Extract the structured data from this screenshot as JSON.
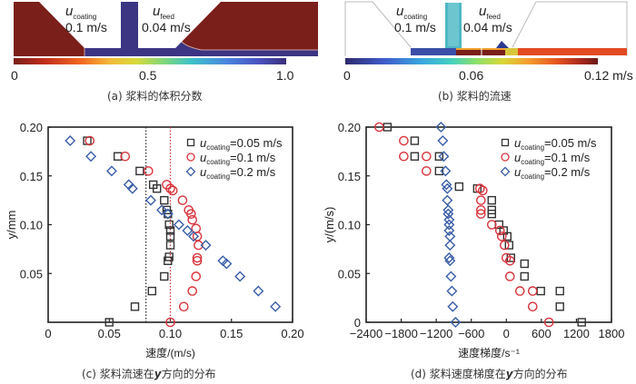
{
  "panels": {
    "a": {
      "caption": "(a) 浆料的体积分数",
      "u_coating_label": "u",
      "u_coating_sub": "coating",
      "u_coating_value": "0.1 m/s",
      "u_feed_label": "u",
      "u_feed_sub": "feed",
      "u_feed_value": "0.04 m/s",
      "colorbar": {
        "min_label": "0",
        "mid_label": "0.5",
        "max_label": "1.0",
        "colormap": "turbo-reversed"
      }
    },
    "b": {
      "caption": "(b) 浆料的流速",
      "u_coating_label": "u",
      "u_coating_sub": "coating",
      "u_coating_value": "0.1 m/s",
      "u_feed_label": "u",
      "u_feed_sub": "feed",
      "u_feed_value": "0.04 m/s",
      "colorbar": {
        "min_label": "0",
        "mid_label": "0.06",
        "max_label": "0.12 m/s",
        "colormap": "turbo"
      }
    },
    "c": {
      "caption_pre": "(c) 浆料流速在",
      "caption_var": "y",
      "caption_post": "方向的分布"
    },
    "d": {
      "caption_pre": "(d) 浆料速度梯度在",
      "caption_var": "y",
      "caption_post": "方向的分布"
    }
  },
  "colors": {
    "series_005": "#333333",
    "series_01": "#d9343c",
    "series_02": "#3a5ea8",
    "dark_red": "#7a1f1a",
    "navy": "#3b3583"
  },
  "chart_data": [
    {
      "type": "scatter",
      "id": "c",
      "title": "",
      "xlabel": "速度/(m/s)",
      "ylabel": "y/mm",
      "xlim": [
        0,
        0.2
      ],
      "ylim": [
        0,
        0.2
      ],
      "xticks": [
        "0",
        "0.05",
        "0.10",
        "0.15",
        "0.20"
      ],
      "xtick_values": [
        0,
        0.05,
        0.1,
        0.15,
        0.2
      ],
      "yticks": [
        "0.05",
        "0.10",
        "0.15",
        "0.20"
      ],
      "ytick_values": [
        0.05,
        0.1,
        0.15,
        0.2
      ],
      "grid": false,
      "legend": "top-right",
      "vlines": [
        {
          "x": 0.08,
          "color": "#333333",
          "style": "dotted"
        },
        {
          "x": 0.1,
          "color": "#d9343c",
          "style": "dotted"
        }
      ],
      "series": [
        {
          "name": "u_coating=0.05 m/s",
          "legend_sub": "coating",
          "legend_val": "=0.05 m/s",
          "marker": "square",
          "color": "#333333",
          "points": [
            [
              0.032,
              0.186
            ],
            [
              0.057,
              0.17
            ],
            [
              0.075,
              0.155
            ],
            [
              0.086,
              0.141
            ],
            [
              0.089,
              0.137
            ],
            [
              0.095,
              0.125
            ],
            [
              0.097,
              0.115
            ],
            [
              0.098,
              0.111
            ],
            [
              0.099,
              0.1
            ],
            [
              0.1,
              0.094
            ],
            [
              0.1,
              0.088
            ],
            [
              0.1,
              0.079
            ],
            [
              0.099,
              0.067
            ],
            [
              0.098,
              0.063
            ],
            [
              0.095,
              0.047
            ],
            [
              0.085,
              0.032
            ],
            [
              0.071,
              0.016
            ],
            [
              0.05,
              0.0
            ]
          ]
        },
        {
          "name": "u_coating=0.1 m/s",
          "legend_sub": "coating",
          "legend_val": "=0.1 m/s",
          "marker": "circle",
          "color": "#d9343c",
          "points": [
            [
              0.034,
              0.186
            ],
            [
              0.063,
              0.17
            ],
            [
              0.082,
              0.155
            ],
            [
              0.097,
              0.141
            ],
            [
              0.1,
              0.137
            ],
            [
              0.102,
              0.135
            ],
            [
              0.11,
              0.125
            ],
            [
              0.115,
              0.115
            ],
            [
              0.117,
              0.111
            ],
            [
              0.118,
              0.105
            ],
            [
              0.121,
              0.096
            ],
            [
              0.122,
              0.088
            ],
            [
              0.123,
              0.079
            ],
            [
              0.122,
              0.066
            ],
            [
              0.122,
              0.063
            ],
            [
              0.121,
              0.047
            ],
            [
              0.118,
              0.032
            ],
            [
              0.111,
              0.016
            ],
            [
              0.1,
              0.0
            ]
          ]
        },
        {
          "name": "u_coating=0.2 m/s",
          "legend_sub": "coating",
          "legend_val": "=0.2 m/s",
          "marker": "diamond",
          "color": "#3a5ea8",
          "points": [
            [
              0.018,
              0.186
            ],
            [
              0.035,
              0.17
            ],
            [
              0.052,
              0.155
            ],
            [
              0.066,
              0.141
            ],
            [
              0.069,
              0.137
            ],
            [
              0.084,
              0.125
            ],
            [
              0.093,
              0.115
            ],
            [
              0.098,
              0.111
            ],
            [
              0.107,
              0.1
            ],
            [
              0.114,
              0.094
            ],
            [
              0.119,
              0.088
            ],
            [
              0.129,
              0.079
            ],
            [
              0.143,
              0.063
            ],
            [
              0.146,
              0.06
            ],
            [
              0.157,
              0.047
            ],
            [
              0.172,
              0.032
            ],
            [
              0.186,
              0.016
            ]
          ]
        }
      ]
    },
    {
      "type": "scatter",
      "id": "d",
      "title": "",
      "xlabel": "速度梯度/s⁻¹",
      "ylabel": "y/(m/s)",
      "xlim": [
        -2400,
        1800
      ],
      "ylim": [
        0,
        0.2
      ],
      "xticks": [
        "−2400",
        "−1800",
        "−1200",
        "−600",
        "0",
        "600",
        "1200",
        "1800"
      ],
      "xtick_values": [
        -2400,
        -1800,
        -1200,
        -600,
        0,
        600,
        1200,
        1800
      ],
      "yticks": [
        "0",
        "0.05",
        "0.10",
        "0.15",
        "0.20"
      ],
      "ytick_values": [
        0,
        0.05,
        0.1,
        0.15,
        0.2
      ],
      "grid": false,
      "legend": "top-right",
      "series": [
        {
          "name": "u_coating=0.05 m/s",
          "legend_sub": "coating",
          "legend_val": "=0.05 m/s",
          "marker": "square",
          "color": "#333333",
          "points": [
            [
              -2036,
              0.2
            ],
            [
              -1569,
              0.186
            ],
            [
              -1569,
              0.17
            ],
            [
              -1150,
              0.17
            ],
            [
              -1150,
              0.155
            ],
            [
              -808,
              0.139
            ],
            [
              -497,
              0.137
            ],
            [
              -249,
              0.125
            ],
            [
              -249,
              0.115
            ],
            [
              -249,
              0.111
            ],
            [
              -124,
              0.1
            ],
            [
              -47,
              0.094
            ],
            [
              16,
              0.088
            ],
            [
              47,
              0.079
            ],
            [
              78,
              0.066
            ],
            [
              311,
              0.06
            ],
            [
              311,
              0.047
            ],
            [
              590,
              0.032
            ],
            [
              917,
              0.032
            ],
            [
              917,
              0.016
            ],
            [
              1290,
              0.0
            ]
          ]
        },
        {
          "name": "u_coating=0.1 m/s",
          "legend_sub": "coating",
          "legend_val": "=0.1 m/s",
          "marker": "circle",
          "color": "#d9343c",
          "points": [
            [
              -2176,
              0.2
            ],
            [
              -1756,
              0.186
            ],
            [
              -1756,
              0.17
            ],
            [
              -1368,
              0.17
            ],
            [
              -1368,
              0.155
            ],
            [
              -451,
              0.137
            ],
            [
              -404,
              0.135
            ],
            [
              -435,
              0.125
            ],
            [
              -435,
              0.115
            ],
            [
              -435,
              0.111
            ],
            [
              -249,
              0.1
            ],
            [
              -109,
              0.094
            ],
            [
              -78,
              0.088
            ],
            [
              -31,
              0.079
            ],
            [
              0,
              0.066
            ],
            [
              62,
              0.063
            ],
            [
              62,
              0.047
            ],
            [
              233,
              0.032
            ],
            [
              451,
              0.032
            ],
            [
              451,
              0.016
            ],
            [
              730,
              0.0
            ]
          ]
        },
        {
          "name": "u_coating=0.2 m/s",
          "legend_sub": "coating",
          "legend_val": "=0.2 m/s",
          "marker": "diamond",
          "color": "#3a5ea8",
          "points": [
            [
              -1119,
              0.2
            ],
            [
              -1088,
              0.186
            ],
            [
              -1072,
              0.17
            ],
            [
              -1041,
              0.155
            ],
            [
              -1026,
              0.141
            ],
            [
              -1010,
              0.137
            ],
            [
              -1010,
              0.125
            ],
            [
              -995,
              0.115
            ],
            [
              -995,
              0.111
            ],
            [
              -979,
              0.105
            ],
            [
              -979,
              0.1
            ],
            [
              -979,
              0.094
            ],
            [
              -964,
              0.088
            ],
            [
              -964,
              0.079
            ],
            [
              -979,
              0.066
            ],
            [
              -964,
              0.063
            ],
            [
              -948,
              0.047
            ],
            [
              -932,
              0.032
            ],
            [
              -917,
              0.016
            ],
            [
              -870,
              0.0
            ]
          ]
        }
      ]
    }
  ]
}
